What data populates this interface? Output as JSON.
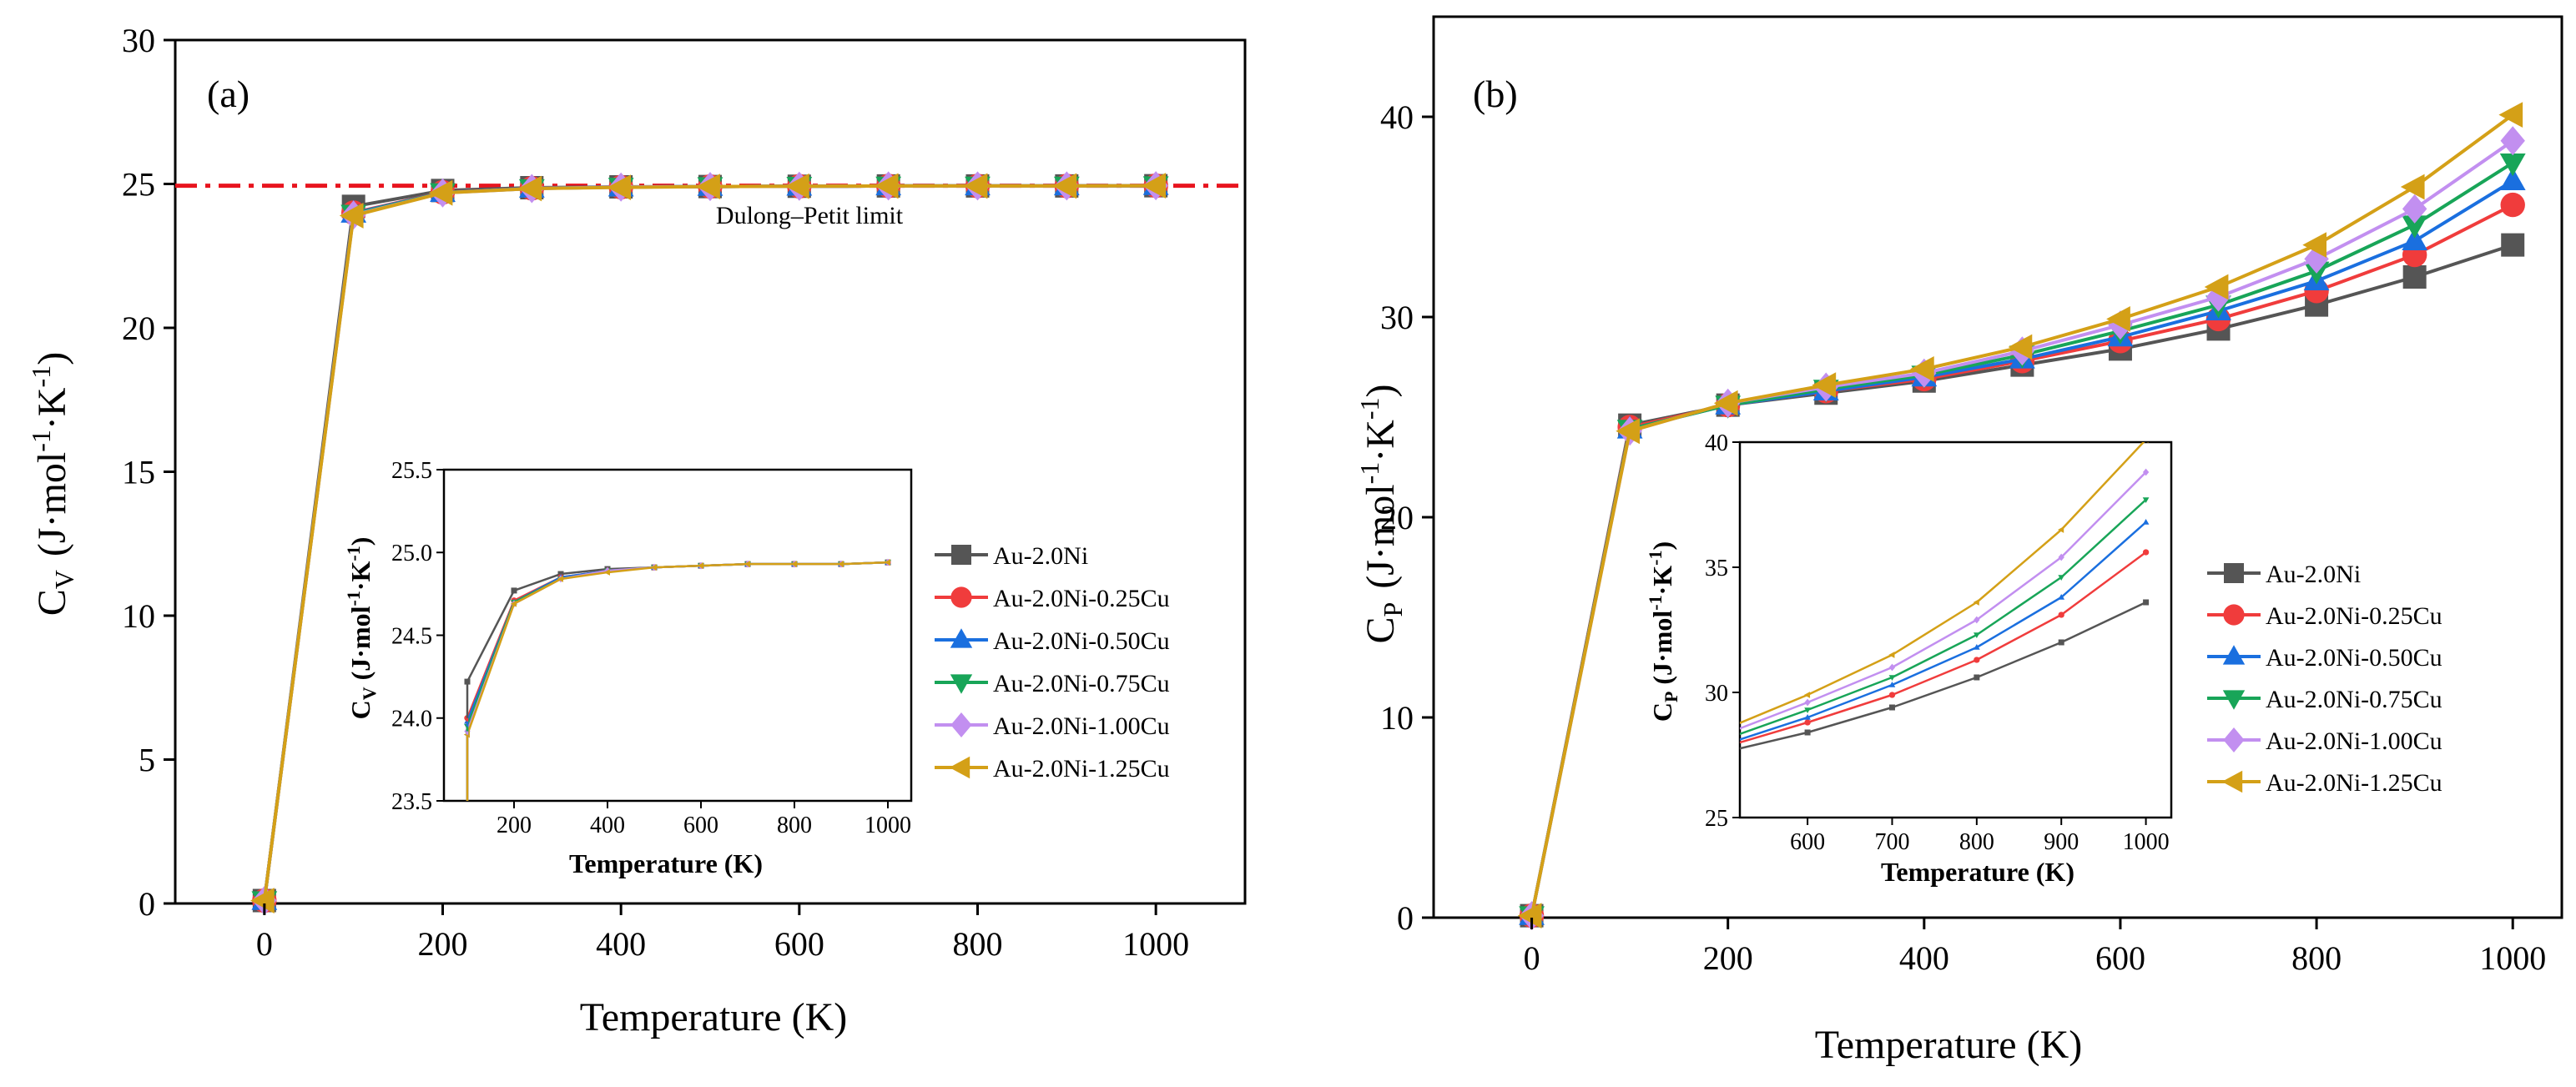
{
  "chart_data": [
    {
      "panel_label": "(a)",
      "type": "line",
      "xlabel": "Temperature (K)",
      "ylabel": {
        "base": "C",
        "sub": "V",
        "unit_a": "(J·mol",
        "sup1": "-1",
        "unit_b": "·K",
        "sup2": "-1",
        "unit_c": ")"
      },
      "xlim": [
        -100,
        1100
      ],
      "ylim": [
        0,
        30
      ],
      "xticks": [
        0,
        200,
        400,
        600,
        800,
        1000
      ],
      "yticks": [
        0,
        5,
        10,
        15,
        20,
        25,
        30
      ],
      "reference_line": {
        "y": 24.94,
        "label": "Dulong–Petit limit",
        "color": "#e8141e"
      },
      "x": [
        0,
        100,
        200,
        300,
        400,
        500,
        600,
        700,
        800,
        900,
        1000
      ],
      "series": [
        {
          "name": "Au-2.0Ni",
          "color": "#555555",
          "marker": "square",
          "values": [
            0.1,
            24.22,
            24.77,
            24.87,
            24.9,
            24.91,
            24.92,
            24.93,
            24.93,
            24.93,
            24.94
          ]
        },
        {
          "name": "Au-2.0Ni-0.25Cu",
          "color": "#f03c3c",
          "marker": "circle",
          "values": [
            0.1,
            24.0,
            24.71,
            24.85,
            24.89,
            24.91,
            24.92,
            24.93,
            24.93,
            24.93,
            24.94
          ]
        },
        {
          "name": "Au-2.0Ni-0.50Cu",
          "color": "#1a6fdf",
          "marker": "triangle-up",
          "values": [
            0.1,
            23.98,
            24.7,
            24.85,
            24.89,
            24.91,
            24.92,
            24.93,
            24.93,
            24.93,
            24.94
          ]
        },
        {
          "name": "Au-2.0Ni-0.75Cu",
          "color": "#18a558",
          "marker": "triangle-down",
          "values": [
            0.1,
            23.95,
            24.7,
            24.84,
            24.89,
            24.91,
            24.92,
            24.93,
            24.93,
            24.93,
            24.94
          ]
        },
        {
          "name": "Au-2.0Ni-1.00Cu",
          "color": "#c28ff0",
          "marker": "diamond",
          "values": [
            0.1,
            23.92,
            24.69,
            24.84,
            24.89,
            24.91,
            24.92,
            24.93,
            24.93,
            24.93,
            24.94
          ]
        },
        {
          "name": "Au-2.0Ni-1.25Cu",
          "color": "#d4a017",
          "marker": "triangle-left",
          "values": [
            0.1,
            23.9,
            24.69,
            24.84,
            24.88,
            24.91,
            24.92,
            24.93,
            24.93,
            24.93,
            24.94
          ]
        }
      ],
      "inset": {
        "xlabel": "Temperature (K)",
        "ylabel": {
          "base": "C",
          "sub": "V",
          "unit_a": "(J·mol",
          "sup1": "-1",
          "unit_b": "·K",
          "sup2": "-1",
          "unit_c": ")"
        },
        "xlim": [
          50,
          1050
        ],
        "ylim": [
          23.5,
          25.5
        ],
        "xticks": [
          200,
          400,
          600,
          800,
          1000
        ],
        "yticks": [
          "23.5",
          "24.0",
          "24.5",
          "25.0",
          "25.5"
        ]
      }
    },
    {
      "panel_label": "(b)",
      "type": "line",
      "xlabel": "Temperature (K)",
      "ylabel": {
        "base": "C",
        "sub": "P",
        "unit_a": "(J·mol",
        "sup1": "-1",
        "unit_b": "·K",
        "sup2": "-1",
        "unit_c": ")"
      },
      "xlim": [
        -100,
        1050
      ],
      "ylim": [
        0,
        45
      ],
      "xticks": [
        0,
        200,
        400,
        600,
        800,
        1000
      ],
      "yticks": [
        0,
        10,
        20,
        30,
        40
      ],
      "x": [
        0,
        100,
        200,
        300,
        400,
        500,
        600,
        700,
        800,
        900,
        1000
      ],
      "series": [
        {
          "name": "Au-2.0Ni",
          "color": "#555555",
          "marker": "square",
          "values": [
            0.1,
            24.6,
            25.6,
            26.2,
            26.8,
            27.6,
            28.4,
            29.4,
            30.6,
            32.0,
            33.6
          ]
        },
        {
          "name": "Au-2.0Ni-0.25Cu",
          "color": "#f03c3c",
          "marker": "circle",
          "values": [
            0.1,
            24.5,
            25.6,
            26.3,
            26.9,
            27.8,
            28.8,
            29.9,
            31.3,
            33.1,
            35.6
          ]
        },
        {
          "name": "Au-2.0Ni-0.50Cu",
          "color": "#1a6fdf",
          "marker": "triangle-up",
          "values": [
            0.1,
            24.4,
            25.6,
            26.3,
            27.0,
            27.9,
            29.0,
            30.3,
            31.8,
            33.8,
            36.8
          ]
        },
        {
          "name": "Au-2.0Ni-0.75Cu",
          "color": "#18a558",
          "marker": "triangle-down",
          "values": [
            0.1,
            24.4,
            25.6,
            26.4,
            27.1,
            28.1,
            29.3,
            30.6,
            32.3,
            34.6,
            37.7
          ]
        },
        {
          "name": "Au-2.0Ni-1.00Cu",
          "color": "#c28ff0",
          "marker": "diamond",
          "values": [
            0.1,
            24.3,
            25.7,
            26.5,
            27.2,
            28.3,
            29.6,
            31.0,
            32.9,
            35.4,
            38.8
          ]
        },
        {
          "name": "Au-2.0Ni-1.25Cu",
          "color": "#d4a017",
          "marker": "triangle-left",
          "values": [
            0.1,
            24.3,
            25.7,
            26.6,
            27.4,
            28.5,
            29.9,
            31.5,
            33.6,
            36.5,
            40.1
          ]
        }
      ],
      "inset": {
        "xlabel": "Temperature (K)",
        "ylabel": {
          "base": "C",
          "sub": "P",
          "unit_a": "(J·mol",
          "sup1": "-1",
          "unit_b": "·K",
          "sup2": "-1",
          "unit_c": ")"
        },
        "xlim": [
          520,
          1030
        ],
        "ylim": [
          25,
          40
        ],
        "xticks": [
          600,
          700,
          800,
          900,
          1000
        ],
        "yticks": [
          25,
          30,
          35,
          40
        ]
      }
    }
  ]
}
